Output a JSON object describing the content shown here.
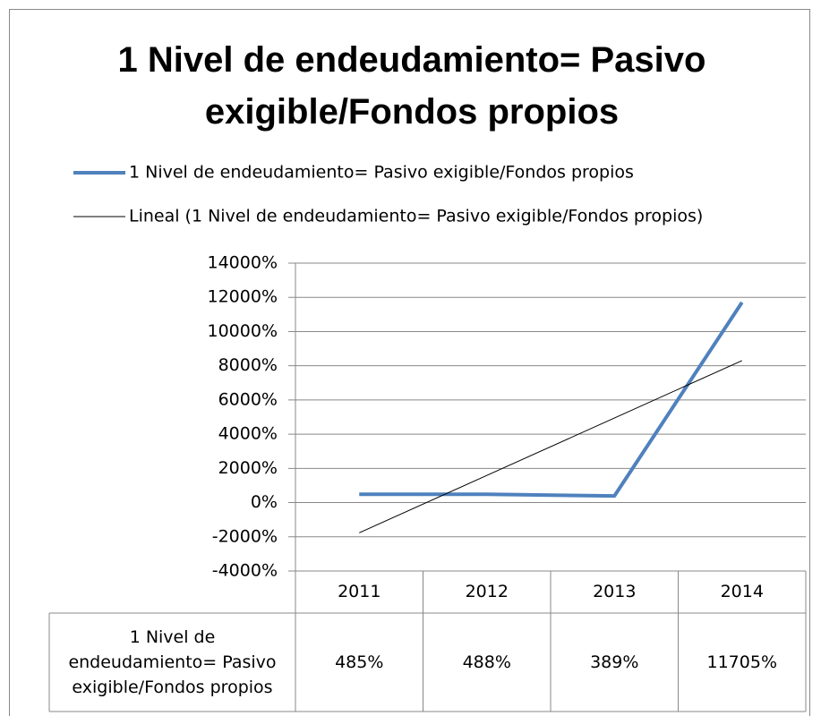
{
  "chart_data": {
    "type": "line",
    "title": "1 Nivel de endeudamiento= Pasivo exigible/Fondos propios",
    "categories": [
      "2011",
      "2012",
      "2013",
      "2014"
    ],
    "series": [
      {
        "name": "1 Nivel de endeudamiento= Pasivo exigible/Fondos propios",
        "color": "#4f81bd",
        "values": [
          485,
          488,
          389,
          11705
        ],
        "value_labels": [
          "485%",
          "488%",
          "389%",
          "11705%"
        ]
      },
      {
        "name": "Lineal (1 Nivel de endeudamiento= Pasivo exigible/Fondos propios)",
        "color": "#000000",
        "values": [
          -1767,
          1589,
          4945,
          8301
        ]
      }
    ],
    "ylim": [
      -4000,
      14000
    ],
    "yticks": [
      {
        "value": -4000,
        "label": "-4000%"
      },
      {
        "value": -2000,
        "label": "-2000%"
      },
      {
        "value": 0,
        "label": "0%"
      },
      {
        "value": 2000,
        "label": "2000%"
      },
      {
        "value": 4000,
        "label": "4000%"
      },
      {
        "value": 6000,
        "label": "6000%"
      },
      {
        "value": 8000,
        "label": "8000%"
      },
      {
        "value": 10000,
        "label": "10000%"
      },
      {
        "value": 12000,
        "label": "12000%"
      },
      {
        "value": 14000,
        "label": "14000%"
      }
    ],
    "grid": true,
    "legend": "top"
  }
}
